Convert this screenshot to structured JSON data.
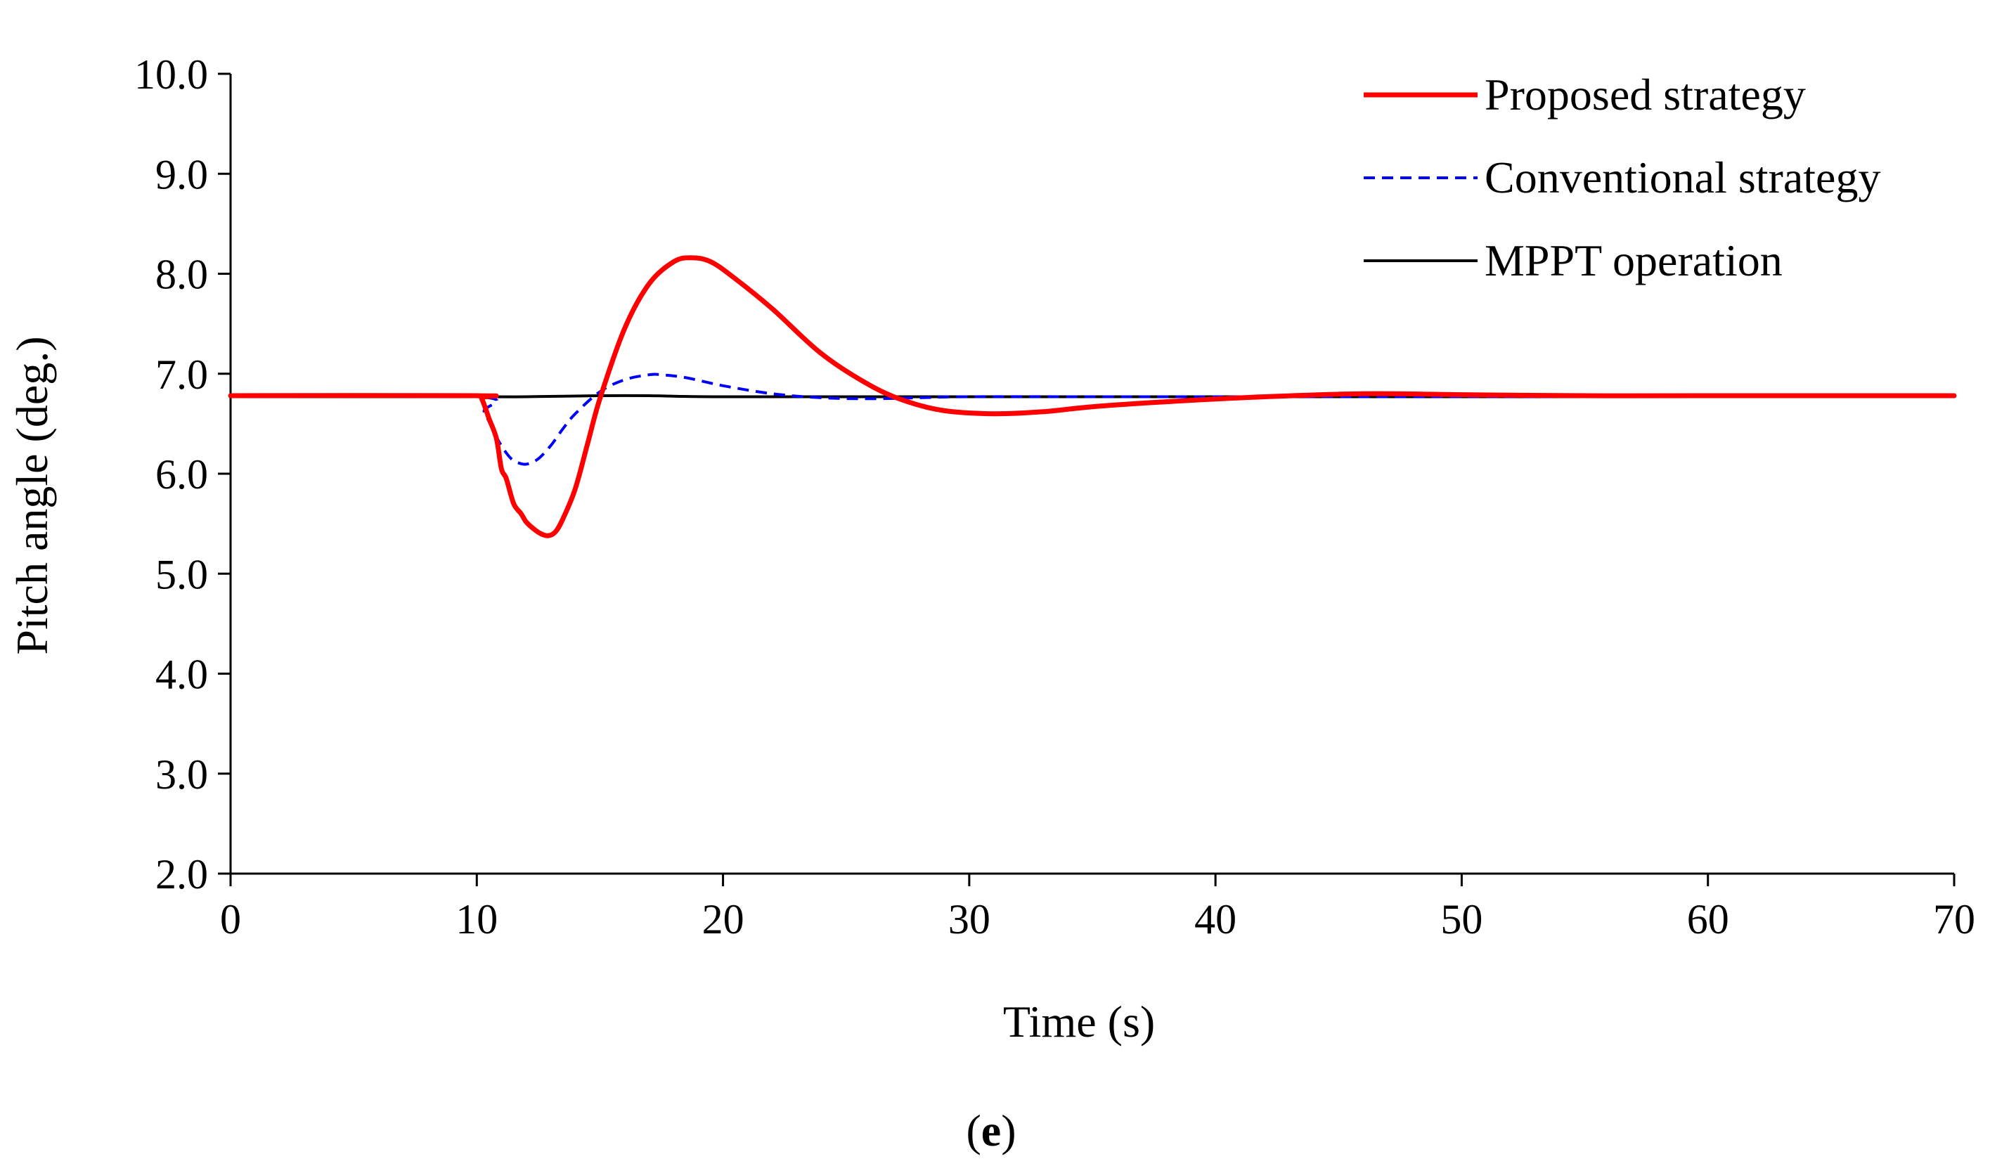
{
  "chart_data": {
    "type": "line",
    "title": "",
    "xlabel": "Time (s)",
    "ylabel": "Pitch angle (deg.)",
    "xlim": [
      0,
      70
    ],
    "ylim": [
      2.0,
      10.0
    ],
    "xticks": [
      0,
      10,
      20,
      30,
      40,
      50,
      60,
      70
    ],
    "xtick_labels": [
      "0",
      "10",
      "20",
      "30",
      "40",
      "50",
      "60",
      "70"
    ],
    "yticks": [
      2.0,
      3.0,
      4.0,
      5.0,
      6.0,
      7.0,
      8.0,
      9.0,
      10.0
    ],
    "ytick_labels": [
      "2.0",
      "3.0",
      "4.0",
      "5.0",
      "6.0",
      "7.0",
      "8.0",
      "9.0",
      "10.0"
    ],
    "grid": false,
    "legend_position": "top-right",
    "caption_open": "(",
    "caption_letter": "e",
    "caption_close": ")",
    "series": [
      {
        "name": "Proposed strategy",
        "color": "#ff0000",
        "style": "solid",
        "x": [
          0,
          10,
          10.2,
          10.5,
          10.8,
          11.0,
          11.2,
          11.5,
          11.8,
          12.0,
          12.3,
          12.6,
          12.9,
          13.2,
          13.5,
          14.0,
          14.5,
          15.0,
          16.0,
          17.0,
          18.0,
          18.7,
          19.5,
          20.5,
          22.0,
          24.0,
          26.0,
          27.5,
          29.0,
          31.0,
          33.0,
          35.0,
          38.0,
          42.0,
          46.0,
          50.0,
          55.0,
          60.0,
          70.0
        ],
        "y": [
          6.78,
          6.78,
          6.75,
          6.55,
          6.35,
          6.05,
          5.95,
          5.7,
          5.6,
          5.52,
          5.45,
          5.4,
          5.38,
          5.42,
          5.55,
          5.85,
          6.3,
          6.75,
          7.45,
          7.9,
          8.12,
          8.16,
          8.12,
          7.95,
          7.65,
          7.2,
          6.88,
          6.72,
          6.63,
          6.6,
          6.62,
          6.67,
          6.72,
          6.77,
          6.8,
          6.79,
          6.78,
          6.78,
          6.78
        ]
      },
      {
        "name": "Conventional strategy",
        "color": "#0000ff",
        "style": "dashed",
        "x": [
          0,
          10,
          10.3,
          10.7,
          11.0,
          11.4,
          11.8,
          12.1,
          12.5,
          13.0,
          13.5,
          14.0,
          15.0,
          16.0,
          17.0,
          17.5,
          18.5,
          20.0,
          22.0,
          24.0,
          26.0,
          28.0,
          30.0,
          35.0,
          40.0,
          50.0,
          60.0,
          70.0
        ],
        "y": [
          6.77,
          6.77,
          6.62,
          6.42,
          6.28,
          6.15,
          6.1,
          6.1,
          6.15,
          6.28,
          6.45,
          6.6,
          6.82,
          6.94,
          6.99,
          6.99,
          6.96,
          6.88,
          6.8,
          6.76,
          6.75,
          6.76,
          6.77,
          6.77,
          6.77,
          6.77,
          6.77,
          6.77
        ]
      },
      {
        "name": "MPPT operation",
        "color": "#000000",
        "style": "solid",
        "x": [
          0,
          10,
          12,
          15,
          17,
          20,
          30,
          40,
          70
        ],
        "y": [
          6.77,
          6.77,
          6.77,
          6.78,
          6.78,
          6.77,
          6.77,
          6.77,
          6.77
        ]
      }
    ]
  }
}
